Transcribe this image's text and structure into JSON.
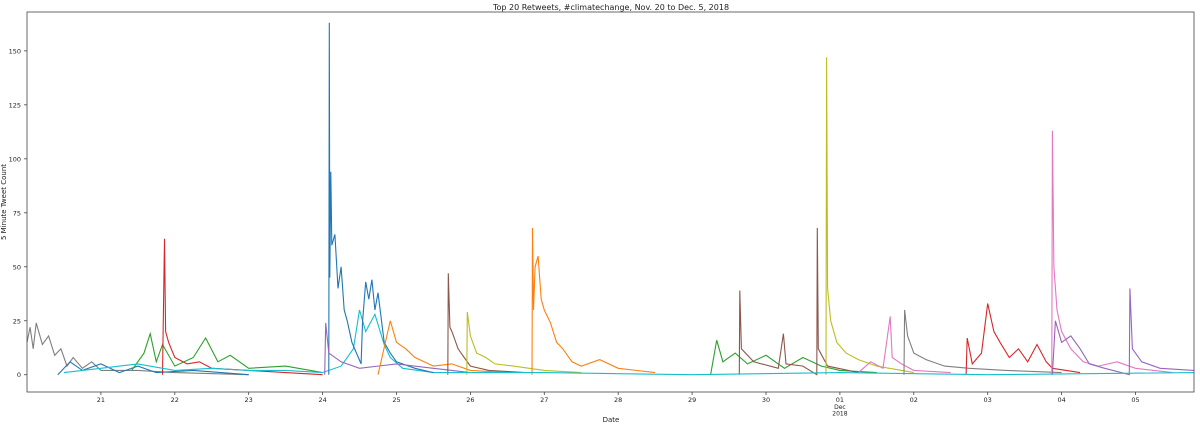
{
  "chart_data": {
    "type": "line",
    "title": "Top 20 Retweets, #climatechange, Nov. 20 to Dec. 5, 2018",
    "xlabel": "Date",
    "ylabel": "5 Minute Tweet Count",
    "xlim": [
      "2018-11-20T00:00",
      "2018-12-05T19:00"
    ],
    "ylim": [
      -8,
      168
    ],
    "grid": false,
    "legend": "none",
    "yticks": [
      0,
      25,
      50,
      75,
      100,
      125,
      150
    ],
    "xticks": [
      {
        "date": "2018-11-21",
        "label": "21"
      },
      {
        "date": "2018-11-22",
        "label": "22"
      },
      {
        "date": "2018-11-23",
        "label": "23"
      },
      {
        "date": "2018-11-24",
        "label": "24"
      },
      {
        "date": "2018-11-25",
        "label": "25"
      },
      {
        "date": "2018-11-26",
        "label": "26"
      },
      {
        "date": "2018-11-27",
        "label": "27"
      },
      {
        "date": "2018-11-28",
        "label": "28"
      },
      {
        "date": "2018-11-29",
        "label": "29"
      },
      {
        "date": "2018-11-30",
        "label": "30"
      },
      {
        "date": "2018-12-01",
        "label": "01",
        "sub": [
          "Dec",
          "2018"
        ]
      },
      {
        "date": "2018-12-02",
        "label": "02"
      },
      {
        "date": "2018-12-03",
        "label": "03"
      },
      {
        "date": "2018-12-04",
        "label": "04"
      },
      {
        "date": "2018-12-05",
        "label": "05"
      }
    ],
    "series": [
      {
        "color": "#7f7f7f",
        "points": [
          [
            "2018-11-20T00:00",
            15
          ],
          [
            "2018-11-20T01:00",
            22
          ],
          [
            "2018-11-20T02:00",
            12
          ],
          [
            "2018-11-20T03:00",
            24
          ],
          [
            "2018-11-20T05:00",
            14
          ],
          [
            "2018-11-20T07:00",
            18
          ],
          [
            "2018-11-20T09:00",
            9
          ],
          [
            "2018-11-20T11:00",
            12
          ],
          [
            "2018-11-20T13:00",
            4
          ],
          [
            "2018-11-20T15:00",
            8
          ],
          [
            "2018-11-20T18:00",
            3
          ],
          [
            "2018-11-20T21:00",
            6
          ],
          [
            "2018-11-21T00:00",
            2
          ],
          [
            "2018-11-21T12:00",
            2
          ],
          [
            "2018-11-22T00:00",
            1
          ],
          [
            "2018-11-23T00:00",
            0
          ]
        ]
      },
      {
        "color": "#1f77b4",
        "points": [
          [
            "2018-11-20T10:00",
            0
          ],
          [
            "2018-11-20T14:00",
            6
          ],
          [
            "2018-11-20T18:00",
            2
          ],
          [
            "2018-11-21T00:00",
            5
          ],
          [
            "2018-11-21T06:00",
            1
          ],
          [
            "2018-11-21T12:00",
            4
          ],
          [
            "2018-11-21T18:00",
            1
          ],
          [
            "2018-11-22T06:00",
            2
          ],
          [
            "2018-11-23T00:00",
            0
          ]
        ]
      },
      {
        "color": "#2ca02c",
        "points": [
          [
            "2018-11-21T10:00",
            2
          ],
          [
            "2018-11-21T14:00",
            10
          ],
          [
            "2018-11-21T16:00",
            19
          ],
          [
            "2018-11-21T18:00",
            6
          ],
          [
            "2018-11-21T20:00",
            14
          ],
          [
            "2018-11-22T00:00",
            4
          ],
          [
            "2018-11-22T06:00",
            8
          ],
          [
            "2018-11-22T10:00",
            17
          ],
          [
            "2018-11-22T14:00",
            6
          ],
          [
            "2018-11-22T18:00",
            9
          ],
          [
            "2018-11-23T00:00",
            3
          ],
          [
            "2018-11-23T12:00",
            4
          ],
          [
            "2018-11-24T00:00",
            1
          ]
        ]
      },
      {
        "color": "#d62728",
        "points": [
          [
            "2018-11-21T20:00",
            0
          ],
          [
            "2018-11-21T20:40",
            63
          ],
          [
            "2018-11-21T21:00",
            20
          ],
          [
            "2018-11-21T22:00",
            15
          ],
          [
            "2018-11-22T00:00",
            8
          ],
          [
            "2018-11-22T04:00",
            5
          ],
          [
            "2018-11-22T08:00",
            6
          ],
          [
            "2018-11-22T12:00",
            3
          ],
          [
            "2018-11-23T00:00",
            2
          ],
          [
            "2018-11-23T12:00",
            1
          ],
          [
            "2018-11-24T00:00",
            0
          ]
        ]
      },
      {
        "color": "#17becf",
        "points": [
          [
            "2018-11-20T12:00",
            1
          ],
          [
            "2018-11-21T00:00",
            3
          ],
          [
            "2018-11-21T12:00",
            5
          ],
          [
            "2018-11-22T00:00",
            2
          ],
          [
            "2018-11-22T12:00",
            3
          ],
          [
            "2018-11-23T00:00",
            2
          ],
          [
            "2018-11-23T12:00",
            2
          ],
          [
            "2018-11-24T00:00",
            1
          ],
          [
            "2018-11-24T06:00",
            4
          ],
          [
            "2018-11-24T10:00",
            12
          ],
          [
            "2018-11-24T12:00",
            30
          ],
          [
            "2018-11-24T14:00",
            20
          ],
          [
            "2018-11-24T17:00",
            28
          ],
          [
            "2018-11-24T20:00",
            14
          ],
          [
            "2018-11-24T22:00",
            8
          ],
          [
            "2018-11-25T02:00",
            3
          ],
          [
            "2018-11-25T12:00",
            1
          ]
        ]
      },
      {
        "color": "#1f77b4",
        "points": [
          [
            "2018-11-24T02:00",
            0
          ],
          [
            "2018-11-24T02:10",
            163
          ],
          [
            "2018-11-24T02:20",
            45
          ],
          [
            "2018-11-24T02:40",
            94
          ],
          [
            "2018-11-24T03:00",
            60
          ],
          [
            "2018-11-24T04:00",
            65
          ],
          [
            "2018-11-24T05:00",
            40
          ],
          [
            "2018-11-24T06:00",
            50
          ],
          [
            "2018-11-24T07:00",
            30
          ],
          [
            "2018-11-24T08:00",
            25
          ],
          [
            "2018-11-24T09:30",
            15
          ],
          [
            "2018-11-24T11:00",
            10
          ],
          [
            "2018-11-24T12:30",
            5
          ],
          [
            "2018-11-24T13:00",
            25
          ],
          [
            "2018-11-24T14:00",
            43
          ],
          [
            "2018-11-24T15:00",
            35
          ],
          [
            "2018-11-24T16:00",
            44
          ],
          [
            "2018-11-24T17:00",
            30
          ],
          [
            "2018-11-24T18:00",
            38
          ],
          [
            "2018-11-24T20:00",
            15
          ],
          [
            "2018-11-24T22:00",
            10
          ],
          [
            "2018-11-25T00:00",
            6
          ],
          [
            "2018-11-25T06:00",
            3
          ],
          [
            "2018-11-25T12:00",
            1
          ]
        ]
      },
      {
        "color": "#9467bd",
        "points": [
          [
            "2018-11-24T00:40",
            0
          ],
          [
            "2018-11-24T01:00",
            24
          ],
          [
            "2018-11-24T02:00",
            10
          ],
          [
            "2018-11-24T06:00",
            6
          ],
          [
            "2018-11-24T12:00",
            3
          ],
          [
            "2018-11-25T00:00",
            5
          ],
          [
            "2018-11-25T12:00",
            3
          ],
          [
            "2018-11-26T00:00",
            1
          ]
        ]
      },
      {
        "color": "#ff7f0e",
        "points": [
          [
            "2018-11-24T18:00",
            0
          ],
          [
            "2018-11-24T22:00",
            25
          ],
          [
            "2018-11-25T00:00",
            15
          ],
          [
            "2018-11-25T03:00",
            12
          ],
          [
            "2018-11-25T06:00",
            8
          ],
          [
            "2018-11-25T12:00",
            4
          ],
          [
            "2018-11-25T18:00",
            5
          ],
          [
            "2018-11-26T00:00",
            2
          ],
          [
            "2018-11-26T12:00",
            1
          ]
        ]
      },
      {
        "color": "#8c564b",
        "points": [
          [
            "2018-11-25T16:40",
            0
          ],
          [
            "2018-11-25T16:50",
            47
          ],
          [
            "2018-11-25T17:20",
            22
          ],
          [
            "2018-11-25T18:00",
            20
          ],
          [
            "2018-11-25T20:00",
            12
          ],
          [
            "2018-11-25T22:00",
            8
          ],
          [
            "2018-11-26T00:00",
            4
          ],
          [
            "2018-11-26T06:00",
            2
          ],
          [
            "2018-11-26T18:00",
            1
          ]
        ]
      },
      {
        "color": "#bcbd22",
        "points": [
          [
            "2018-11-25T22:50",
            0
          ],
          [
            "2018-11-25T23:00",
            29
          ],
          [
            "2018-11-26T00:00",
            18
          ],
          [
            "2018-11-26T02:00",
            10
          ],
          [
            "2018-11-26T05:00",
            8
          ],
          [
            "2018-11-26T08:00",
            5
          ],
          [
            "2018-11-26T14:00",
            4
          ],
          [
            "2018-11-27T00:00",
            2
          ],
          [
            "2018-11-27T12:00",
            1
          ]
        ]
      },
      {
        "color": "#ff7f0e",
        "points": [
          [
            "2018-11-26T20:00",
            0
          ],
          [
            "2018-11-26T20:10",
            68
          ],
          [
            "2018-11-26T20:30",
            30
          ],
          [
            "2018-11-26T21:00",
            50
          ],
          [
            "2018-11-26T22:00",
            55
          ],
          [
            "2018-11-26T23:00",
            35
          ],
          [
            "2018-11-27T00:00",
            30
          ],
          [
            "2018-11-27T02:00",
            24
          ],
          [
            "2018-11-27T04:00",
            15
          ],
          [
            "2018-11-27T06:00",
            12
          ],
          [
            "2018-11-27T09:00",
            6
          ],
          [
            "2018-11-27T12:00",
            4
          ],
          [
            "2018-11-27T18:00",
            7
          ],
          [
            "2018-11-28T00:00",
            3
          ],
          [
            "2018-11-28T12:00",
            1
          ]
        ]
      },
      {
        "color": "#2ca02c",
        "points": [
          [
            "2018-11-29T06:00",
            0
          ],
          [
            "2018-11-29T08:00",
            16
          ],
          [
            "2018-11-29T10:00",
            6
          ],
          [
            "2018-11-29T14:00",
            10
          ],
          [
            "2018-11-29T18:00",
            5
          ],
          [
            "2018-11-30T00:00",
            9
          ],
          [
            "2018-11-30T06:00",
            3
          ],
          [
            "2018-11-30T12:00",
            8
          ],
          [
            "2018-11-30T18:00",
            4
          ],
          [
            "2018-12-01T00:00",
            2
          ],
          [
            "2018-12-01T12:00",
            1
          ]
        ]
      },
      {
        "color": "#8c564b",
        "points": [
          [
            "2018-11-29T15:20",
            0
          ],
          [
            "2018-11-29T15:30",
            39
          ],
          [
            "2018-11-29T16:00",
            12
          ],
          [
            "2018-11-29T20:00",
            6
          ],
          [
            "2018-11-30T04:00",
            3
          ],
          [
            "2018-11-30T05:40",
            19
          ],
          [
            "2018-11-30T06:30",
            5
          ],
          [
            "2018-11-30T12:00",
            4
          ],
          [
            "2018-11-30T16:30",
            0
          ],
          [
            "2018-11-30T16:40",
            68
          ],
          [
            "2018-11-30T17:00",
            12
          ],
          [
            "2018-11-30T20:00",
            4
          ],
          [
            "2018-12-01T06:00",
            1
          ]
        ]
      },
      {
        "color": "#bcbd22",
        "points": [
          [
            "2018-11-30T19:30",
            0
          ],
          [
            "2018-11-30T19:40",
            147
          ],
          [
            "2018-11-30T20:00",
            40
          ],
          [
            "2018-11-30T21:00",
            25
          ],
          [
            "2018-11-30T23:00",
            15
          ],
          [
            "2018-12-01T02:00",
            10
          ],
          [
            "2018-12-01T06:00",
            7
          ],
          [
            "2018-12-01T12:00",
            4
          ],
          [
            "2018-12-02T00:00",
            1
          ]
        ]
      },
      {
        "color": "#e377c2",
        "points": [
          [
            "2018-12-01T06:00",
            1
          ],
          [
            "2018-12-01T10:00",
            6
          ],
          [
            "2018-12-01T14:00",
            3
          ],
          [
            "2018-12-01T16:20",
            27
          ],
          [
            "2018-12-01T17:00",
            8
          ],
          [
            "2018-12-01T20:00",
            5
          ],
          [
            "2018-12-02T00:00",
            2
          ],
          [
            "2018-12-02T12:00",
            1
          ]
        ]
      },
      {
        "color": "#7f7f7f",
        "points": [
          [
            "2018-12-01T20:50",
            0
          ],
          [
            "2018-12-01T21:00",
            30
          ],
          [
            "2018-12-01T22:00",
            18
          ],
          [
            "2018-12-02T00:00",
            10
          ],
          [
            "2018-12-02T04:00",
            7
          ],
          [
            "2018-12-02T10:00",
            4
          ],
          [
            "2018-12-02T18:00",
            3
          ],
          [
            "2018-12-03T06:00",
            2
          ],
          [
            "2018-12-04T00:00",
            1
          ]
        ]
      },
      {
        "color": "#d62728",
        "points": [
          [
            "2018-12-02T17:00",
            0
          ],
          [
            "2018-12-02T17:20",
            17
          ],
          [
            "2018-12-02T19:00",
            5
          ],
          [
            "2018-12-02T22:00",
            10
          ],
          [
            "2018-12-03T00:00",
            33
          ],
          [
            "2018-12-03T02:00",
            20
          ],
          [
            "2018-12-03T04:00",
            15
          ],
          [
            "2018-12-03T07:00",
            8
          ],
          [
            "2018-12-03T10:00",
            12
          ],
          [
            "2018-12-03T13:00",
            6
          ],
          [
            "2018-12-03T16:00",
            14
          ],
          [
            "2018-12-03T19:00",
            6
          ],
          [
            "2018-12-03T21:00",
            3
          ],
          [
            "2018-12-04T06:00",
            1
          ]
        ]
      },
      {
        "color": "#e377c2",
        "points": [
          [
            "2018-12-03T20:50",
            0
          ],
          [
            "2018-12-03T21:00",
            113
          ],
          [
            "2018-12-03T21:30",
            50
          ],
          [
            "2018-12-03T22:30",
            30
          ],
          [
            "2018-12-04T00:00",
            20
          ],
          [
            "2018-12-04T03:00",
            12
          ],
          [
            "2018-12-04T07:00",
            6
          ],
          [
            "2018-12-04T12:00",
            4
          ],
          [
            "2018-12-04T18:00",
            6
          ],
          [
            "2018-12-05T00:00",
            3
          ],
          [
            "2018-12-05T12:00",
            1
          ]
        ]
      },
      {
        "color": "#9467bd",
        "points": [
          [
            "2018-12-03T21:00",
            0
          ],
          [
            "2018-12-03T22:00",
            25
          ],
          [
            "2018-12-04T00:00",
            15
          ],
          [
            "2018-12-04T03:00",
            18
          ],
          [
            "2018-12-04T06:00",
            12
          ],
          [
            "2018-12-04T09:00",
            5
          ],
          [
            "2018-12-04T14:00",
            3
          ],
          [
            "2018-12-04T22:00",
            0
          ],
          [
            "2018-12-04T22:10",
            40
          ],
          [
            "2018-12-04T23:00",
            12
          ],
          [
            "2018-12-05T02:00",
            6
          ],
          [
            "2018-12-05T08:00",
            3
          ],
          [
            "2018-12-05T19:00",
            2
          ]
        ]
      },
      {
        "color": "#17becf",
        "points": [
          [
            "2018-11-25T12:00",
            1
          ],
          [
            "2018-11-27T00:00",
            1
          ],
          [
            "2018-11-29T00:00",
            0
          ],
          [
            "2018-12-01T00:00",
            1
          ],
          [
            "2018-12-03T00:00",
            0
          ],
          [
            "2018-12-05T19:00",
            1
          ]
        ]
      }
    ]
  }
}
